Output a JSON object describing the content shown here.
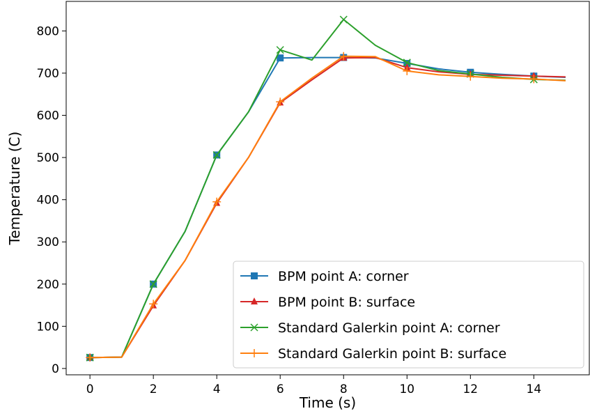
{
  "chart_data": {
    "type": "line",
    "title": "",
    "xlabel": "Time (s)",
    "ylabel": "Temperature (C)",
    "xlim": [
      -0.75,
      15.75
    ],
    "ylim": [
      -15,
      870
    ],
    "xticks": [
      0,
      2,
      4,
      6,
      8,
      10,
      12,
      14
    ],
    "yticks": [
      0,
      100,
      200,
      300,
      400,
      500,
      600,
      700,
      800
    ],
    "grid": false,
    "legend_position": "lower-right",
    "series": [
      {
        "name": "BPM point A: corner",
        "color": "#1f77b4",
        "marker": "square",
        "x": [
          0,
          1,
          2,
          3,
          4,
          5,
          6,
          7,
          8,
          9,
          10,
          11,
          12,
          13,
          14,
          15
        ],
        "y": [
          26,
          27,
          200,
          325,
          506,
          608,
          736,
          737,
          737,
          736,
          723,
          710,
          702,
          697,
          693,
          690
        ],
        "marker_x": [
          0,
          2,
          4,
          6,
          8,
          10,
          12,
          14
        ]
      },
      {
        "name": "BPM point B: surface",
        "color": "#d62728",
        "marker": "triangle",
        "x": [
          0,
          1,
          2,
          3,
          4,
          5,
          6,
          7,
          8,
          9,
          10,
          11,
          12,
          13,
          14,
          15
        ],
        "y": [
          26,
          27,
          149,
          256,
          392,
          500,
          630,
          684,
          736,
          737,
          713,
          703,
          697,
          695,
          693,
          691
        ],
        "marker_x": [
          0,
          2,
          4,
          6,
          8,
          10,
          12,
          14
        ]
      },
      {
        "name": "Standard Galerkin point A: corner",
        "color": "#2ca02c",
        "marker": "x",
        "x": [
          0,
          1,
          2,
          3,
          4,
          5,
          6,
          7,
          8,
          9,
          10,
          11,
          12,
          13,
          14,
          15
        ],
        "y": [
          26,
          27,
          200,
          325,
          506,
          608,
          755,
          731,
          827,
          766,
          725,
          706,
          698,
          690,
          685,
          683
        ],
        "marker_x": [
          0,
          2,
          4,
          6,
          8,
          10,
          12,
          14
        ]
      },
      {
        "name": "Standard Galerkin point B: surface",
        "color": "#ff7f0e",
        "marker": "plus",
        "x": [
          0,
          1,
          2,
          3,
          4,
          5,
          6,
          7,
          8,
          9,
          10,
          11,
          12,
          13,
          14,
          15
        ],
        "y": [
          26,
          27,
          153,
          256,
          395,
          500,
          632,
          688,
          740,
          739,
          705,
          696,
          692,
          688,
          686,
          682
        ],
        "marker_x": [
          0,
          2,
          4,
          6,
          8,
          10,
          12,
          14
        ]
      }
    ]
  }
}
